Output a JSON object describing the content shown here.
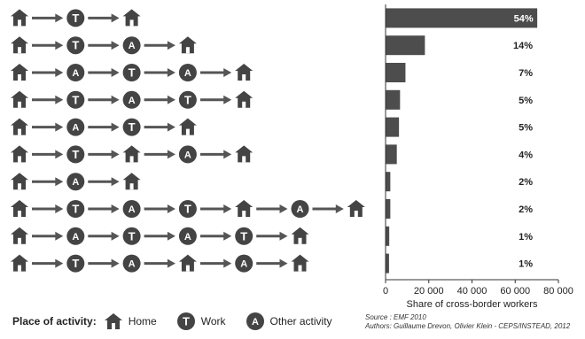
{
  "chart_data": {
    "type": "bar",
    "orientation": "horizontal",
    "x_axis_label": "Share of cross-border workers",
    "x_ticks": [
      "0",
      "20 000",
      "40 000",
      "60 000",
      "80 000"
    ],
    "xlim": [
      0,
      80000
    ],
    "categories": [
      [
        "H",
        "T",
        "H"
      ],
      [
        "H",
        "T",
        "A",
        "H"
      ],
      [
        "H",
        "A",
        "T",
        "A",
        "H"
      ],
      [
        "H",
        "T",
        "A",
        "T",
        "H"
      ],
      [
        "H",
        "A",
        "T",
        "H"
      ],
      [
        "H",
        "T",
        "H",
        "A",
        "H"
      ],
      [
        "H",
        "A",
        "H"
      ],
      [
        "H",
        "T",
        "A",
        "T",
        "H",
        "A",
        "H"
      ],
      [
        "H",
        "A",
        "T",
        "A",
        "T",
        "H"
      ],
      [
        "H",
        "T",
        "A",
        "H",
        "A",
        "H"
      ]
    ],
    "values": [
      70000,
      18000,
      9000,
      6500,
      6000,
      5000,
      2000,
      2000,
      1500,
      1400
    ],
    "labels": [
      "54%",
      "14%",
      "7%",
      "5%",
      "5%",
      "4%",
      "2%",
      "2%",
      "1%",
      "1%"
    ],
    "bar_color": "#4d4d4d"
  },
  "legend": {
    "title": "Place of activity:",
    "home": "Home",
    "work": "Work",
    "other": "Other activity",
    "work_letter": "T",
    "other_letter": "A"
  },
  "source": {
    "line1": "Source : EMF 2010",
    "line2": "Authors: Guillaume Drevon, Olivier Klein - CEPS/INSTEAD, 2012"
  }
}
